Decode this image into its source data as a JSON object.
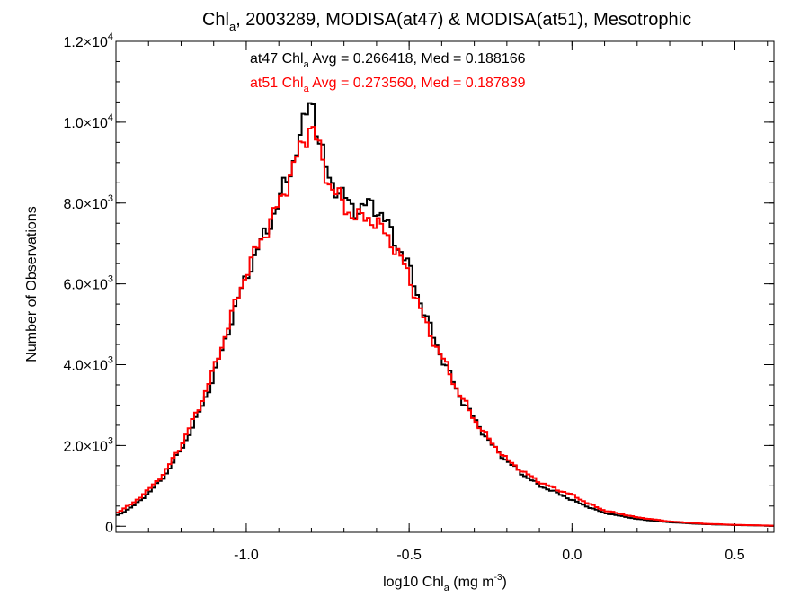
{
  "chart_data": {
    "type": "line",
    "title": {
      "pre": "Chl",
      "sub": "a",
      "post": ", 2003289, MODISA(at47) & MODISA(at51), Mesotrophic"
    },
    "xlabel": {
      "pre": "log10 Chl",
      "sub": "a",
      "mid": " (mg m",
      "sup": "-3",
      "post": ")"
    },
    "ylabel": "Number of Observations",
    "xlim": [
      -1.4,
      0.62
    ],
    "ylim": [
      -150,
      12000
    ],
    "x_ticks": [
      {
        "value": -1.0,
        "label": "-1.0"
      },
      {
        "value": -0.5,
        "label": "-0.5"
      },
      {
        "value": 0.0,
        "label": "0.0"
      },
      {
        "value": 0.5,
        "label": "0.5"
      }
    ],
    "x_minor_step": 0.1,
    "y_ticks": [
      {
        "value": 0,
        "mantissa": "0",
        "exp": ""
      },
      {
        "value": 2000,
        "mantissa": "2.0×10",
        "exp": "3"
      },
      {
        "value": 4000,
        "mantissa": "4.0×10",
        "exp": "3"
      },
      {
        "value": 6000,
        "mantissa": "6.0×10",
        "exp": "3"
      },
      {
        "value": 8000,
        "mantissa": "8.0×10",
        "exp": "3"
      },
      {
        "value": 10000,
        "mantissa": "1.0×10",
        "exp": "4"
      },
      {
        "value": 12000,
        "mantissa": "1.2×10",
        "exp": "4"
      }
    ],
    "y_minor_step": 500,
    "annotations": [
      {
        "pre": "at47 Chl",
        "sub": "a",
        "post": " Avg = 0.266418, Med = 0.188166",
        "color": "#000000"
      },
      {
        "pre": "at51 Chl",
        "sub": "a",
        "post": " Avg = 0.273560, Med = 0.187839",
        "color": "#ff0000"
      }
    ],
    "bin_width": 0.01,
    "series": [
      {
        "color": "#000000",
        "x": [
          -1.4,
          -1.35,
          -1.3,
          -1.25,
          -1.2,
          -1.15,
          -1.1,
          -1.05,
          -1.0,
          -0.95,
          -0.9,
          -0.85,
          -0.82,
          -0.8,
          -0.78,
          -0.75,
          -0.7,
          -0.65,
          -0.62,
          -0.6,
          -0.55,
          -0.5,
          -0.45,
          -0.4,
          -0.35,
          -0.3,
          -0.25,
          -0.2,
          -0.15,
          -0.1,
          -0.05,
          0.0,
          0.05,
          0.1,
          0.2,
          0.3,
          0.4,
          0.5,
          0.62
        ],
        "y": [
          250,
          480,
          820,
          1250,
          1900,
          2700,
          3700,
          5000,
          6200,
          7100,
          8000,
          9200,
          10000,
          10800,
          9600,
          8700,
          8100,
          7800,
          8000,
          7900,
          7200,
          6400,
          5200,
          4200,
          3300,
          2650,
          2050,
          1620,
          1280,
          1010,
          840,
          650,
          480,
          330,
          180,
          100,
          55,
          30,
          12
        ]
      },
      {
        "color": "#ff0000",
        "x": [
          -1.4,
          -1.35,
          -1.3,
          -1.25,
          -1.2,
          -1.15,
          -1.1,
          -1.05,
          -1.0,
          -0.95,
          -0.9,
          -0.85,
          -0.82,
          -0.8,
          -0.78,
          -0.75,
          -0.7,
          -0.65,
          -0.62,
          -0.6,
          -0.55,
          -0.5,
          -0.45,
          -0.4,
          -0.35,
          -0.3,
          -0.25,
          -0.2,
          -0.15,
          -0.1,
          -0.05,
          0.0,
          0.05,
          0.1,
          0.2,
          0.3,
          0.4,
          0.5,
          0.62
        ],
        "y": [
          320,
          560,
          900,
          1330,
          2000,
          2850,
          3850,
          5100,
          6300,
          7150,
          7950,
          9000,
          9600,
          10000,
          9400,
          8600,
          7900,
          7600,
          7650,
          7500,
          7000,
          6200,
          5000,
          4200,
          3350,
          2650,
          2100,
          1650,
          1350,
          1100,
          920,
          780,
          560,
          390,
          220,
          120,
          65,
          35,
          15
        ]
      }
    ]
  }
}
